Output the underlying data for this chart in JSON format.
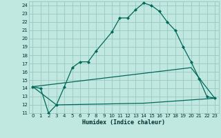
{
  "xlabel": "Humidex (Indice chaleur)",
  "background_color": "#c0e8e0",
  "grid_color": "#98c8c0",
  "line_color": "#006858",
  "xlim": [
    -0.5,
    23.5
  ],
  "ylim": [
    11,
    24.5
  ],
  "xticks": [
    0,
    1,
    2,
    3,
    4,
    5,
    6,
    7,
    8,
    9,
    10,
    11,
    12,
    13,
    14,
    15,
    16,
    17,
    18,
    19,
    20,
    21,
    22,
    23
  ],
  "yticks": [
    11,
    12,
    13,
    14,
    15,
    16,
    17,
    18,
    19,
    20,
    21,
    22,
    23,
    24
  ],
  "line1_x": [
    0,
    1,
    2,
    3,
    4,
    5,
    6,
    7,
    8,
    10,
    11,
    12,
    13,
    14,
    15,
    16,
    17,
    18,
    19,
    20,
    21,
    22,
    23
  ],
  "line1_y": [
    14.2,
    14.0,
    11.0,
    12.0,
    14.2,
    16.5,
    17.2,
    17.2,
    18.5,
    20.8,
    22.5,
    22.5,
    23.5,
    24.3,
    24.0,
    23.3,
    22.0,
    21.0,
    19.0,
    17.2,
    15.2,
    13.0,
    12.8
  ],
  "line2_x": [
    0,
    3,
    14,
    23
  ],
  "line2_y": [
    14.2,
    12.0,
    12.2,
    12.8
  ],
  "line3_x": [
    0,
    20,
    23
  ],
  "line3_y": [
    14.2,
    16.5,
    12.8
  ]
}
